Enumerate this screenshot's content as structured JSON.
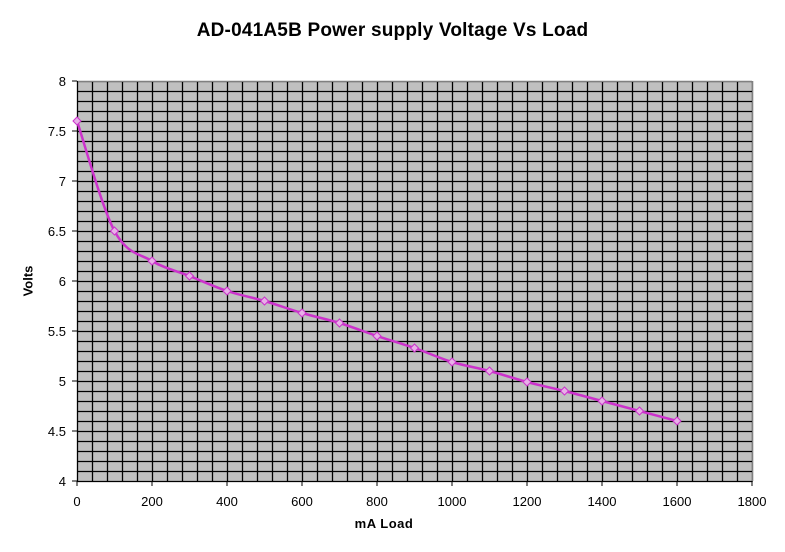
{
  "chart_data": {
    "type": "line",
    "title": "AD-041A5B Power supply Voltage Vs Load",
    "xlabel": "mA Load",
    "ylabel": "Volts",
    "xlim": [
      0,
      1800
    ],
    "ylim": [
      4,
      8
    ],
    "x_ticks": [
      0,
      200,
      400,
      600,
      800,
      1000,
      1200,
      1400,
      1600,
      1800
    ],
    "y_ticks": [
      "4",
      "4.5",
      "5",
      "5.5",
      "6",
      "6.5",
      "7",
      "7.5",
      "8"
    ],
    "x_minor_step": 40,
    "y_minor_step": 0.1,
    "grid": true,
    "legend": null,
    "series": [
      {
        "name": "Voltage",
        "x": [
          0,
          100,
          200,
          300,
          400,
          500,
          600,
          700,
          800,
          900,
          1000,
          1100,
          1200,
          1300,
          1400,
          1500,
          1600
        ],
        "values": [
          7.6,
          6.5,
          6.2,
          6.05,
          5.9,
          5.8,
          5.68,
          5.58,
          5.45,
          5.33,
          5.19,
          5.1,
          4.99,
          4.9,
          4.8,
          4.7,
          4.6
        ],
        "line_color": "#CC33CC",
        "marker": "diamond",
        "marker_fill": "#E8B0E8"
      }
    ],
    "plot_background": "#C0C0C0",
    "grid_color": "#000000"
  }
}
